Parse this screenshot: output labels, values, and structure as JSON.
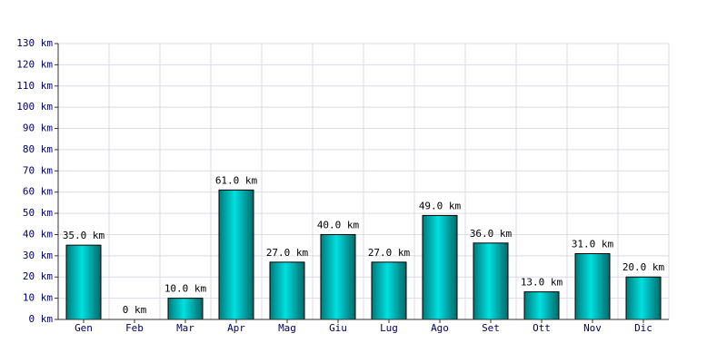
{
  "chart_data": {
    "type": "bar",
    "categories": [
      "Gen",
      "Feb",
      "Mar",
      "Apr",
      "Mag",
      "Giu",
      "Lug",
      "Ago",
      "Set",
      "Ott",
      "Nov",
      "Dic"
    ],
    "values": [
      35,
      0,
      10,
      61,
      27,
      40,
      27,
      49,
      36,
      13,
      31,
      20
    ],
    "value_labels": [
      "35.0 km",
      "0 km",
      "10.0 km",
      "61.0 km",
      "27.0 km",
      "40.0 km",
      "27.0 km",
      "49.0 km",
      "36.0 km",
      "13.0 km",
      "31.0 km",
      "20.0 km"
    ],
    "color": "#00e0e0",
    "ylim": [
      0,
      130
    ],
    "yticks": [
      {
        "value": 0,
        "label": "0 km"
      },
      {
        "value": 10,
        "label": "10 km"
      },
      {
        "value": 20,
        "label": "20 km"
      },
      {
        "value": 30,
        "label": "30 km"
      },
      {
        "value": 40,
        "label": "40 km"
      },
      {
        "value": 50,
        "label": "50 km"
      },
      {
        "value": 60,
        "label": "60 km"
      },
      {
        "value": 70,
        "label": "70 km"
      },
      {
        "value": 80,
        "label": "80 km"
      },
      {
        "value": 90,
        "label": "90 km"
      },
      {
        "value": 100,
        "label": "100 km"
      },
      {
        "value": 110,
        "label": "110 km"
      },
      {
        "value": 120,
        "label": "120 km"
      },
      {
        "value": 130,
        "label": "130 km"
      }
    ],
    "grid": true
  }
}
